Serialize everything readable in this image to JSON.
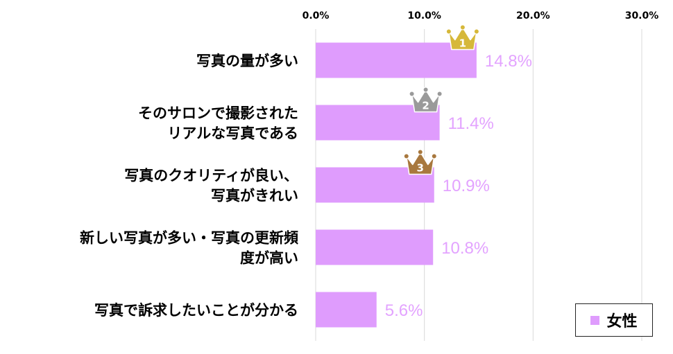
{
  "chart_data": {
    "type": "bar",
    "orientation": "horizontal",
    "categories": [
      [
        "写真の量が多い"
      ],
      [
        "そのサロンで撮影された",
        "リアルな写真である"
      ],
      [
        "写真のクオリティが良い、",
        "写真がきれい"
      ],
      [
        "新しい写真が多い・写真の更新頻",
        "度が高い"
      ],
      [
        "写真で訴求したいことが分かる"
      ]
    ],
    "series": [
      {
        "name": "女性",
        "values": [
          14.8,
          11.4,
          10.9,
          10.8,
          5.6
        ],
        "color": "#df9cfd"
      }
    ],
    "value_labels": [
      "14.8%",
      "11.4%",
      "10.9%",
      "10.8%",
      "5.6%"
    ],
    "ranks": [
      "1",
      "2",
      "3"
    ],
    "xlim": [
      0,
      30
    ],
    "xticks": [
      "0.0%",
      "10.0%",
      "20.0%",
      "30.0%"
    ],
    "grid": true,
    "legend_position": "bottom-right"
  },
  "legend": {
    "label": "女性"
  },
  "colors": {
    "bar": "#df9cfd",
    "value_text": "#e3a3ff",
    "gold": "#d6b83a",
    "silver": "#9a9a9a",
    "bronze": "#a8783e"
  }
}
